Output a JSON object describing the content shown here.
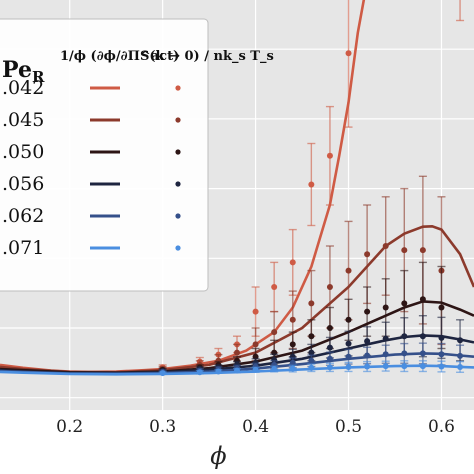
{
  "chart_data": {
    "type": "line",
    "xlabel": "ϕ",
    "ylabel": "",
    "xlim": [
      0.125,
      0.635
    ],
    "ylim": [
      0,
      1
    ],
    "x_ticks": [
      "0.2",
      "0.3",
      "0.4",
      "0.5",
      "0.6"
    ],
    "x_tick_values": [
      0.2,
      0.3,
      0.4,
      0.5,
      0.6
    ],
    "grid": true,
    "background": "#e6e6e6",
    "legend": {
      "placement": "top-left",
      "col1_header": "Pe",
      "col1_header_sub": "R",
      "col2_header": "1/ϕ (∂ϕ/∂Π^act)",
      "col2_header_sub": "",
      "col3_header": "S(k → 0) / nk_s T_s"
    },
    "series": [
      {
        "name": ".042",
        "color": "#cf5b45",
        "curve_x": [
          0.125,
          0.15,
          0.18,
          0.2,
          0.22,
          0.25,
          0.28,
          0.3,
          0.33,
          0.36,
          0.39,
          0.42,
          0.44,
          0.46,
          0.48,
          0.49,
          0.5,
          0.51,
          0.518
        ],
        "curve_y": [
          0.11,
          0.103,
          0.096,
          0.094,
          0.093,
          0.094,
          0.097,
          0.1,
          0.108,
          0.12,
          0.145,
          0.19,
          0.25,
          0.35,
          0.5,
          0.62,
          0.75,
          0.92,
          1.02
        ],
        "points": [
          {
            "x": 0.3,
            "y": 0.104,
            "err": 0.006
          },
          {
            "x": 0.34,
            "y": 0.118,
            "err": 0.01
          },
          {
            "x": 0.36,
            "y": 0.135,
            "err": 0.015
          },
          {
            "x": 0.38,
            "y": 0.16,
            "err": 0.02
          },
          {
            "x": 0.4,
            "y": 0.24,
            "err": 0.06
          },
          {
            "x": 0.42,
            "y": 0.3,
            "err": 0.06
          },
          {
            "x": 0.44,
            "y": 0.36,
            "err": 0.08
          },
          {
            "x": 0.46,
            "y": 0.55,
            "err": 0.1
          },
          {
            "x": 0.48,
            "y": 0.62,
            "err": 0.12
          },
          {
            "x": 0.5,
            "y": 0.87,
            "err": 0.18
          },
          {
            "x": 0.62,
            "y": 1.05,
            "err": 0.1
          }
        ]
      },
      {
        "name": ".045",
        "color": "#8c3a2c",
        "curve_x": [
          0.125,
          0.15,
          0.2,
          0.25,
          0.3,
          0.35,
          0.4,
          0.45,
          0.5,
          0.54,
          0.56,
          0.58,
          0.59,
          0.6,
          0.62,
          0.635
        ],
        "curve_y": [
          0.105,
          0.1,
          0.093,
          0.092,
          0.097,
          0.11,
          0.14,
          0.2,
          0.3,
          0.4,
          0.43,
          0.447,
          0.448,
          0.44,
          0.38,
          0.3
        ],
        "points": [
          {
            "x": 0.3,
            "y": 0.1,
            "err": 0.006
          },
          {
            "x": 0.34,
            "y": 0.11,
            "err": 0.01
          },
          {
            "x": 0.36,
            "y": 0.12,
            "err": 0.015
          },
          {
            "x": 0.38,
            "y": 0.14,
            "err": 0.02
          },
          {
            "x": 0.4,
            "y": 0.16,
            "err": 0.04
          },
          {
            "x": 0.42,
            "y": 0.19,
            "err": 0.05
          },
          {
            "x": 0.44,
            "y": 0.22,
            "err": 0.07
          },
          {
            "x": 0.46,
            "y": 0.26,
            "err": 0.08
          },
          {
            "x": 0.48,
            "y": 0.3,
            "err": 0.1
          },
          {
            "x": 0.5,
            "y": 0.34,
            "err": 0.12
          },
          {
            "x": 0.52,
            "y": 0.38,
            "err": 0.12
          },
          {
            "x": 0.54,
            "y": 0.4,
            "err": 0.12
          },
          {
            "x": 0.56,
            "y": 0.39,
            "err": 0.15
          },
          {
            "x": 0.58,
            "y": 0.39,
            "err": 0.18
          },
          {
            "x": 0.6,
            "y": 0.34,
            "err": 0.18
          }
        ]
      },
      {
        "name": ".050",
        "color": "#2d1515",
        "curve_x": [
          0.125,
          0.15,
          0.2,
          0.25,
          0.3,
          0.35,
          0.4,
          0.45,
          0.5,
          0.54,
          0.56,
          0.58,
          0.6,
          0.62,
          0.635
        ],
        "curve_y": [
          0.1,
          0.097,
          0.092,
          0.091,
          0.094,
          0.102,
          0.118,
          0.145,
          0.19,
          0.23,
          0.25,
          0.265,
          0.262,
          0.245,
          0.23
        ],
        "points": [
          {
            "x": 0.3,
            "y": 0.098,
            "err": 0.004
          },
          {
            "x": 0.34,
            "y": 0.104,
            "err": 0.006
          },
          {
            "x": 0.36,
            "y": 0.11,
            "err": 0.008
          },
          {
            "x": 0.38,
            "y": 0.12,
            "err": 0.01
          },
          {
            "x": 0.4,
            "y": 0.13,
            "err": 0.02
          },
          {
            "x": 0.42,
            "y": 0.14,
            "err": 0.03
          },
          {
            "x": 0.44,
            "y": 0.16,
            "err": 0.03
          },
          {
            "x": 0.46,
            "y": 0.18,
            "err": 0.04
          },
          {
            "x": 0.48,
            "y": 0.2,
            "err": 0.05
          },
          {
            "x": 0.5,
            "y": 0.22,
            "err": 0.05
          },
          {
            "x": 0.52,
            "y": 0.24,
            "err": 0.06
          },
          {
            "x": 0.54,
            "y": 0.25,
            "err": 0.07
          },
          {
            "x": 0.56,
            "y": 0.26,
            "err": 0.08
          },
          {
            "x": 0.58,
            "y": 0.27,
            "err": 0.09
          },
          {
            "x": 0.6,
            "y": 0.25,
            "err": 0.1
          }
        ]
      },
      {
        "name": ".056",
        "color": "#1e2540",
        "curve_x": [
          0.125,
          0.15,
          0.2,
          0.25,
          0.3,
          0.35,
          0.4,
          0.45,
          0.5,
          0.54,
          0.56,
          0.58,
          0.6,
          0.62,
          0.635
        ],
        "curve_y": [
          0.097,
          0.094,
          0.09,
          0.09,
          0.092,
          0.098,
          0.108,
          0.125,
          0.15,
          0.17,
          0.178,
          0.182,
          0.18,
          0.172,
          0.165
        ],
        "points": [
          {
            "x": 0.3,
            "y": 0.095,
            "err": 0.004
          },
          {
            "x": 0.34,
            "y": 0.1,
            "err": 0.005
          },
          {
            "x": 0.36,
            "y": 0.104,
            "err": 0.006
          },
          {
            "x": 0.38,
            "y": 0.11,
            "err": 0.008
          },
          {
            "x": 0.4,
            "y": 0.115,
            "err": 0.01
          },
          {
            "x": 0.42,
            "y": 0.122,
            "err": 0.014
          },
          {
            "x": 0.44,
            "y": 0.13,
            "err": 0.018
          },
          {
            "x": 0.46,
            "y": 0.14,
            "err": 0.02
          },
          {
            "x": 0.48,
            "y": 0.152,
            "err": 0.025
          },
          {
            "x": 0.5,
            "y": 0.162,
            "err": 0.03
          },
          {
            "x": 0.52,
            "y": 0.168,
            "err": 0.035
          },
          {
            "x": 0.54,
            "y": 0.174,
            "err": 0.04
          },
          {
            "x": 0.56,
            "y": 0.18,
            "err": 0.045
          },
          {
            "x": 0.58,
            "y": 0.18,
            "err": 0.05
          },
          {
            "x": 0.6,
            "y": 0.176,
            "err": 0.05
          },
          {
            "x": 0.62,
            "y": 0.17,
            "err": 0.05
          }
        ]
      },
      {
        "name": ".062",
        "color": "#35508a",
        "curve_x": [
          0.125,
          0.15,
          0.2,
          0.25,
          0.3,
          0.35,
          0.4,
          0.45,
          0.5,
          0.55,
          0.58,
          0.6,
          0.62,
          0.635
        ],
        "curve_y": [
          0.095,
          0.093,
          0.089,
          0.089,
          0.09,
          0.094,
          0.101,
          0.112,
          0.125,
          0.135,
          0.138,
          0.137,
          0.133,
          0.13
        ],
        "points": [
          {
            "x": 0.3,
            "y": 0.093,
            "err": 0.004
          },
          {
            "x": 0.34,
            "y": 0.096,
            "err": 0.005
          },
          {
            "x": 0.36,
            "y": 0.099,
            "err": 0.006
          },
          {
            "x": 0.38,
            "y": 0.102,
            "err": 0.007
          },
          {
            "x": 0.4,
            "y": 0.106,
            "err": 0.008
          },
          {
            "x": 0.42,
            "y": 0.11,
            "err": 0.01
          },
          {
            "x": 0.44,
            "y": 0.115,
            "err": 0.012
          },
          {
            "x": 0.46,
            "y": 0.12,
            "err": 0.014
          },
          {
            "x": 0.48,
            "y": 0.125,
            "err": 0.016
          },
          {
            "x": 0.5,
            "y": 0.13,
            "err": 0.018
          },
          {
            "x": 0.52,
            "y": 0.133,
            "err": 0.02
          },
          {
            "x": 0.54,
            "y": 0.136,
            "err": 0.022
          },
          {
            "x": 0.56,
            "y": 0.138,
            "err": 0.024
          },
          {
            "x": 0.58,
            "y": 0.138,
            "err": 0.025
          },
          {
            "x": 0.6,
            "y": 0.136,
            "err": 0.026
          },
          {
            "x": 0.62,
            "y": 0.132,
            "err": 0.026
          }
        ]
      },
      {
        "name": ".071",
        "color": "#4a8ee0",
        "curve_x": [
          0.125,
          0.15,
          0.2,
          0.25,
          0.3,
          0.35,
          0.4,
          0.45,
          0.5,
          0.55,
          0.58,
          0.6,
          0.62,
          0.635
        ],
        "curve_y": [
          0.093,
          0.091,
          0.088,
          0.087,
          0.088,
          0.09,
          0.094,
          0.099,
          0.104,
          0.107,
          0.108,
          0.107,
          0.105,
          0.104
        ],
        "points": [
          {
            "x": 0.3,
            "y": 0.09,
            "err": 0.003
          },
          {
            "x": 0.34,
            "y": 0.092,
            "err": 0.004
          },
          {
            "x": 0.36,
            "y": 0.094,
            "err": 0.004
          },
          {
            "x": 0.38,
            "y": 0.096,
            "err": 0.005
          },
          {
            "x": 0.4,
            "y": 0.098,
            "err": 0.006
          },
          {
            "x": 0.42,
            "y": 0.1,
            "err": 0.007
          },
          {
            "x": 0.44,
            "y": 0.101,
            "err": 0.008
          },
          {
            "x": 0.46,
            "y": 0.103,
            "err": 0.009
          },
          {
            "x": 0.48,
            "y": 0.104,
            "err": 0.01
          },
          {
            "x": 0.5,
            "y": 0.105,
            "err": 0.011
          },
          {
            "x": 0.52,
            "y": 0.106,
            "err": 0.012
          },
          {
            "x": 0.54,
            "y": 0.107,
            "err": 0.012
          },
          {
            "x": 0.56,
            "y": 0.107,
            "err": 0.013
          },
          {
            "x": 0.58,
            "y": 0.107,
            "err": 0.013
          },
          {
            "x": 0.6,
            "y": 0.106,
            "err": 0.013
          },
          {
            "x": 0.62,
            "y": 0.105,
            "err": 0.013
          }
        ]
      }
    ]
  }
}
